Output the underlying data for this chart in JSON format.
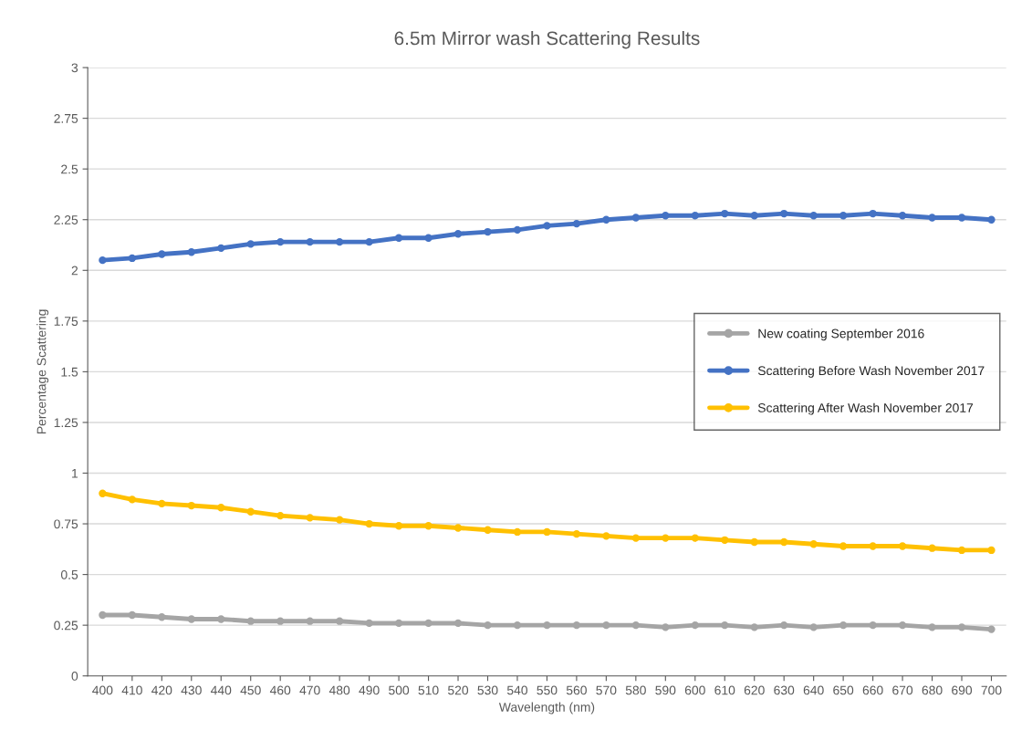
{
  "chart_data": {
    "type": "line",
    "title": "6.5m Mirror wash Scattering Results",
    "xlabel": "Wavelength (nm)",
    "ylabel": "Percentage Scattering",
    "categories": [
      "400",
      "410",
      "420",
      "430",
      "440",
      "450",
      "460",
      "470",
      "480",
      "490",
      "500",
      "510",
      "520",
      "530",
      "540",
      "550",
      "560",
      "570",
      "580",
      "590",
      "600",
      "610",
      "620",
      "630",
      "640",
      "650",
      "660",
      "670",
      "680",
      "690",
      "700"
    ],
    "series": [
      {
        "name": "New coating September 2016",
        "color": "#a5a5a5",
        "values": [
          0.3,
          0.3,
          0.29,
          0.28,
          0.28,
          0.27,
          0.27,
          0.27,
          0.27,
          0.26,
          0.26,
          0.26,
          0.26,
          0.25,
          0.25,
          0.25,
          0.25,
          0.25,
          0.25,
          0.24,
          0.25,
          0.25,
          0.24,
          0.25,
          0.24,
          0.25,
          0.25,
          0.25,
          0.24,
          0.24,
          0.23
        ]
      },
      {
        "name": "Scattering Before Wash November 2017",
        "color": "#4472c4",
        "values": [
          2.05,
          2.06,
          2.08,
          2.09,
          2.11,
          2.13,
          2.14,
          2.14,
          2.14,
          2.14,
          2.16,
          2.16,
          2.18,
          2.19,
          2.2,
          2.22,
          2.23,
          2.25,
          2.26,
          2.27,
          2.27,
          2.28,
          2.27,
          2.28,
          2.27,
          2.27,
          2.28,
          2.27,
          2.26,
          2.26,
          2.25
        ]
      },
      {
        "name": "Scattering After Wash November 2017",
        "color": "#ffc000",
        "values": [
          0.9,
          0.87,
          0.85,
          0.84,
          0.83,
          0.81,
          0.79,
          0.78,
          0.77,
          0.75,
          0.74,
          0.74,
          0.73,
          0.72,
          0.71,
          0.71,
          0.7,
          0.69,
          0.68,
          0.68,
          0.68,
          0.67,
          0.66,
          0.66,
          0.65,
          0.64,
          0.64,
          0.64,
          0.63,
          0.62,
          0.62
        ]
      }
    ],
    "ylim": [
      0,
      3
    ],
    "yticks": [
      0,
      0.25,
      0.5,
      0.75,
      1,
      1.25,
      1.5,
      1.75,
      2,
      2.25,
      2.5,
      2.75,
      3
    ],
    "grid": "y",
    "legend": "right",
    "marker": "circle",
    "line_style": "solid"
  }
}
